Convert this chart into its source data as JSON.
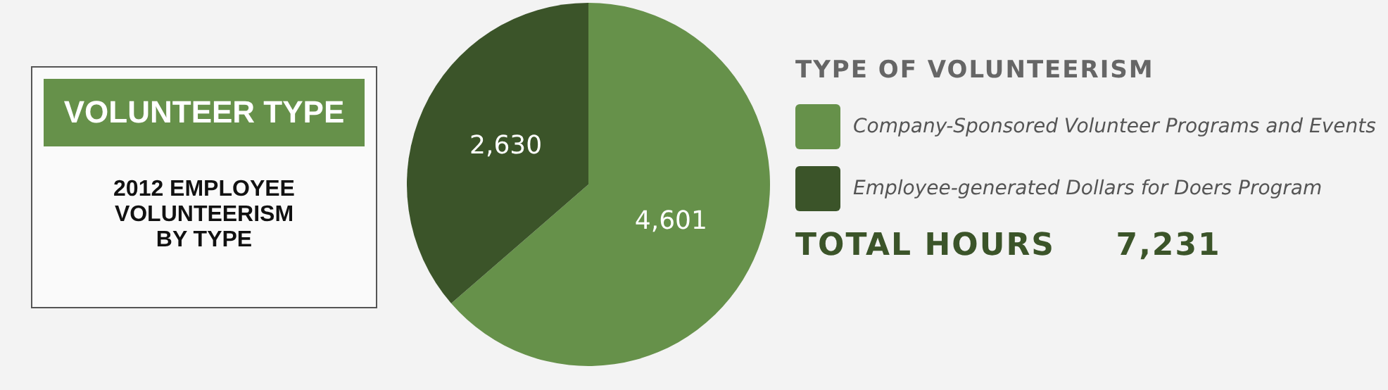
{
  "chart_data": {
    "type": "pie",
    "title": "VOLUNTEER TYPE",
    "subtitle": "2012 EMPLOYEE VOLUNTEERISM BY TYPE",
    "legend_title": "TYPE OF VOLUNTEERISM",
    "categories": [
      "Company-Sponsored Volunteer Programs and Events",
      "Employee-generated Dollars for Doers Program"
    ],
    "values": [
      4601,
      2630
    ],
    "colors": [
      "#66914a",
      "#3b5429"
    ],
    "value_labels": [
      "4,601",
      "2,630"
    ],
    "legend": "right",
    "annotations": [
      "TOTAL HOURS     7,231"
    ]
  }
}
